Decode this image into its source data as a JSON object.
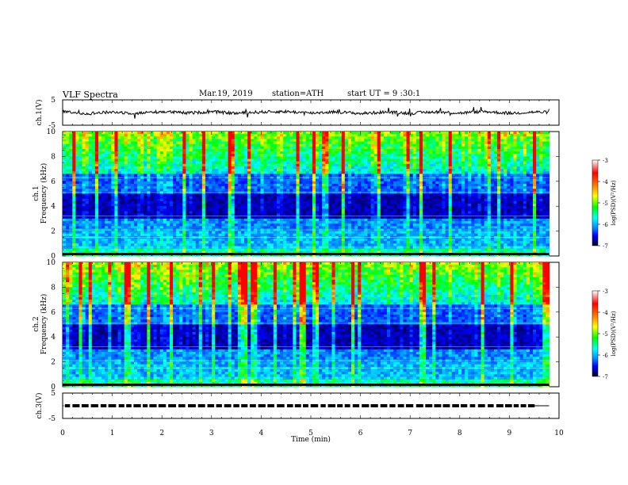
{
  "header": {
    "title": "VLF Spectra",
    "date": "Mar.19, 2019",
    "station": "station=ATH",
    "start": "start UT = 9 :30:1"
  },
  "colors": {
    "axis": "#000000",
    "background": "#ffffff",
    "colormap": [
      "#000000",
      "#00008b",
      "#0000ff",
      "#0080ff",
      "#00ffff",
      "#00ff00",
      "#ffff00",
      "#ff8000",
      "#ff0000",
      "#ffffff"
    ]
  },
  "chart_data": [
    {
      "type": "line",
      "panel": "ch1-voltage",
      "ylabel": "ch.1(V)",
      "ylim": [
        -5,
        5
      ],
      "yticks": [
        "5",
        "-5"
      ],
      "xlim": [
        0,
        10
      ],
      "series": [
        {
          "x": [
            0,
            0.5,
            1,
            1.5,
            2,
            2.5,
            3,
            3.5,
            4,
            4.5,
            5,
            5.5,
            6,
            6.5,
            7,
            7.5,
            8,
            8.5,
            9,
            9.5,
            9.8
          ],
          "y": [
            0.3,
            -0.4,
            0.2,
            -0.3,
            0.4,
            -0.2,
            0.3,
            -0.3,
            0.2,
            0.4,
            -0.2,
            0.3,
            -0.4,
            0.2,
            -0.3,
            0.3,
            -0.2,
            0.4,
            -0.3,
            0.2,
            0.1
          ]
        }
      ]
    },
    {
      "type": "heatmap",
      "panel": "ch1-spectrogram",
      "ylabel": "ch.1 Frequency (kHz)",
      "ylim": [
        0,
        10
      ],
      "yticks": [
        "0",
        "2",
        "4",
        "6",
        "8",
        "10"
      ],
      "xlim": [
        0,
        9.8
      ],
      "colorbar": {
        "label": "log(PSD)(V²/Hz)",
        "range": [
          -7,
          -3
        ],
        "ticks": [
          "-3",
          "-4",
          "-5",
          "-6",
          "-7"
        ]
      }
    },
    {
      "type": "heatmap",
      "panel": "ch2-spectrogram",
      "ylabel": "ch.2 Frequency (kHz)",
      "ylim": [
        0,
        10
      ],
      "yticks": [
        "0",
        "2",
        "4",
        "6",
        "8",
        "10"
      ],
      "xlim": [
        0,
        9.8
      ],
      "colorbar": {
        "label": "log(PSD)(V²/Hz)",
        "range": [
          -7,
          -3
        ],
        "ticks": [
          "-3",
          "-4",
          "-5",
          "-6",
          "-7"
        ]
      }
    },
    {
      "type": "line",
      "panel": "ch3-voltage",
      "ylabel": "ch.3(V)",
      "ylim": [
        -5,
        5
      ],
      "yticks": [
        "5",
        "-5"
      ],
      "xlim": [
        0,
        10
      ],
      "xlabel": "Time (min)",
      "xticks": [
        "0",
        "1",
        "2",
        "3",
        "4",
        "5",
        "6",
        "7",
        "8",
        "9",
        "10"
      ],
      "series": [
        {
          "x": [
            0,
            9.8
          ],
          "y": [
            0,
            0
          ],
          "style": "dashed-square"
        }
      ]
    }
  ]
}
